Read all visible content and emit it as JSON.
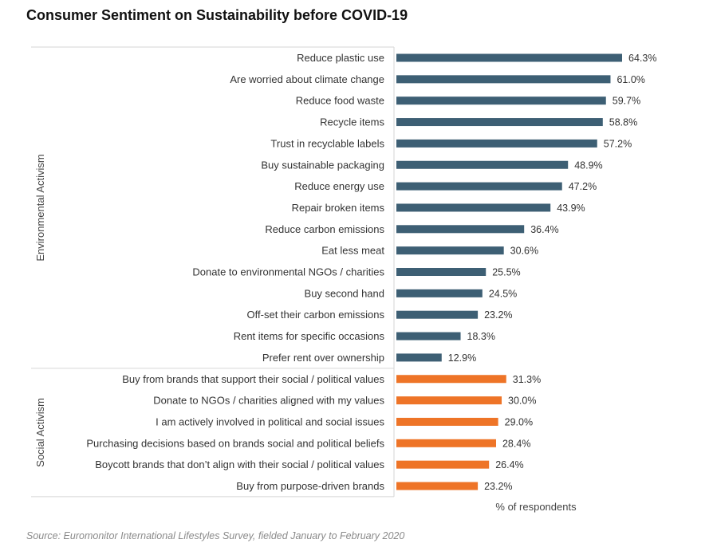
{
  "chart_data": {
    "type": "bar",
    "orientation": "horizontal",
    "title": "Consumer Sentiment on Sustainability before COVID-19",
    "xlabel": "% of respondents",
    "ylabel": "",
    "xlim": [
      0,
      70
    ],
    "value_suffix": "%",
    "colors": {
      "Environmental Activism": "#3d5f74",
      "Social Activism": "#ee7427"
    },
    "groups": [
      {
        "name": "Environmental Activism",
        "categories": [
          "Reduce plastic use",
          "Are worried about climate change",
          "Reduce food waste",
          "Recycle items",
          "Trust in recyclable labels",
          "Buy sustainable packaging",
          "Reduce energy use",
          "Repair broken items",
          "Reduce carbon emissions",
          "Eat less meat",
          "Donate to environmental NGOs / charities",
          "Buy second hand",
          "Off-set their carbon emissions",
          "Rent items for specific occasions",
          "Prefer rent over ownership"
        ],
        "values": [
          64.3,
          61.0,
          59.7,
          58.8,
          57.2,
          48.9,
          47.2,
          43.9,
          36.4,
          30.6,
          25.5,
          24.5,
          23.2,
          18.3,
          12.9
        ]
      },
      {
        "name": "Social Activism",
        "categories": [
          "Buy from brands that support their social / political values",
          "Donate to NGOs / charities aligned with my values",
          "I am actively involved in political and social issues",
          "Purchasing decisions based on brands social and political beliefs",
          "Boycott brands that don’t align with their social / political values",
          "Buy from purpose-driven brands"
        ],
        "values": [
          31.3,
          30.0,
          29.0,
          28.4,
          26.4,
          23.2
        ]
      }
    ]
  },
  "source": "Source: Euromonitor International Lifestyles Survey, fielded January to February 2020"
}
